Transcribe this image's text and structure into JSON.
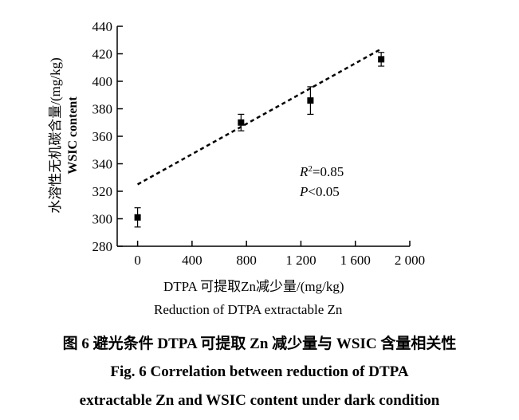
{
  "chart_data": {
    "type": "scatter",
    "x_unit_label_cn": "DTPA 可提取Zn减少量/(mg/kg)",
    "x_label_en": "Reduction of DTPA extractable Zn",
    "y_label_cn": "水溶性无机碳含量/(mg/kg)",
    "y_label_en": "WSIC content",
    "xlim": [
      -150,
      2000
    ],
    "ylim": [
      280,
      440
    ],
    "x_ticks": [
      0,
      400,
      800,
      1200,
      1600,
      2000
    ],
    "x_tick_labels": [
      "0",
      "400",
      "800",
      "1 200",
      "1 600",
      "2 000"
    ],
    "y_ticks": [
      280,
      300,
      320,
      340,
      360,
      380,
      400,
      420,
      440
    ],
    "y_tick_labels": [
      "280",
      "300",
      "320",
      "340",
      "360",
      "380",
      "400",
      "420",
      "440"
    ],
    "points": [
      {
        "x": 0,
        "y": 301,
        "err": 7
      },
      {
        "x": 760,
        "y": 370,
        "err": 6
      },
      {
        "x": 1270,
        "y": 386,
        "err": 10
      },
      {
        "x": 1790,
        "y": 416,
        "err": 5
      }
    ],
    "fit_line": {
      "x": [
        0,
        1780
      ],
      "y": [
        325,
        423
      ]
    },
    "annotations": {
      "r2": "=0.85",
      "r2_symbol": "R",
      "p_symbol": "P",
      "p_text": "<0.05"
    },
    "grid": false,
    "legend": "none"
  },
  "caption": {
    "cn": "图 6    避光条件 DTPA 可提取 Zn 减少量与 WSIC 含量相关性",
    "en_line1": "Fig. 6    Correlation between reduction of DTPA",
    "en_line2": "extractable Zn and WSIC content under dark condition"
  }
}
